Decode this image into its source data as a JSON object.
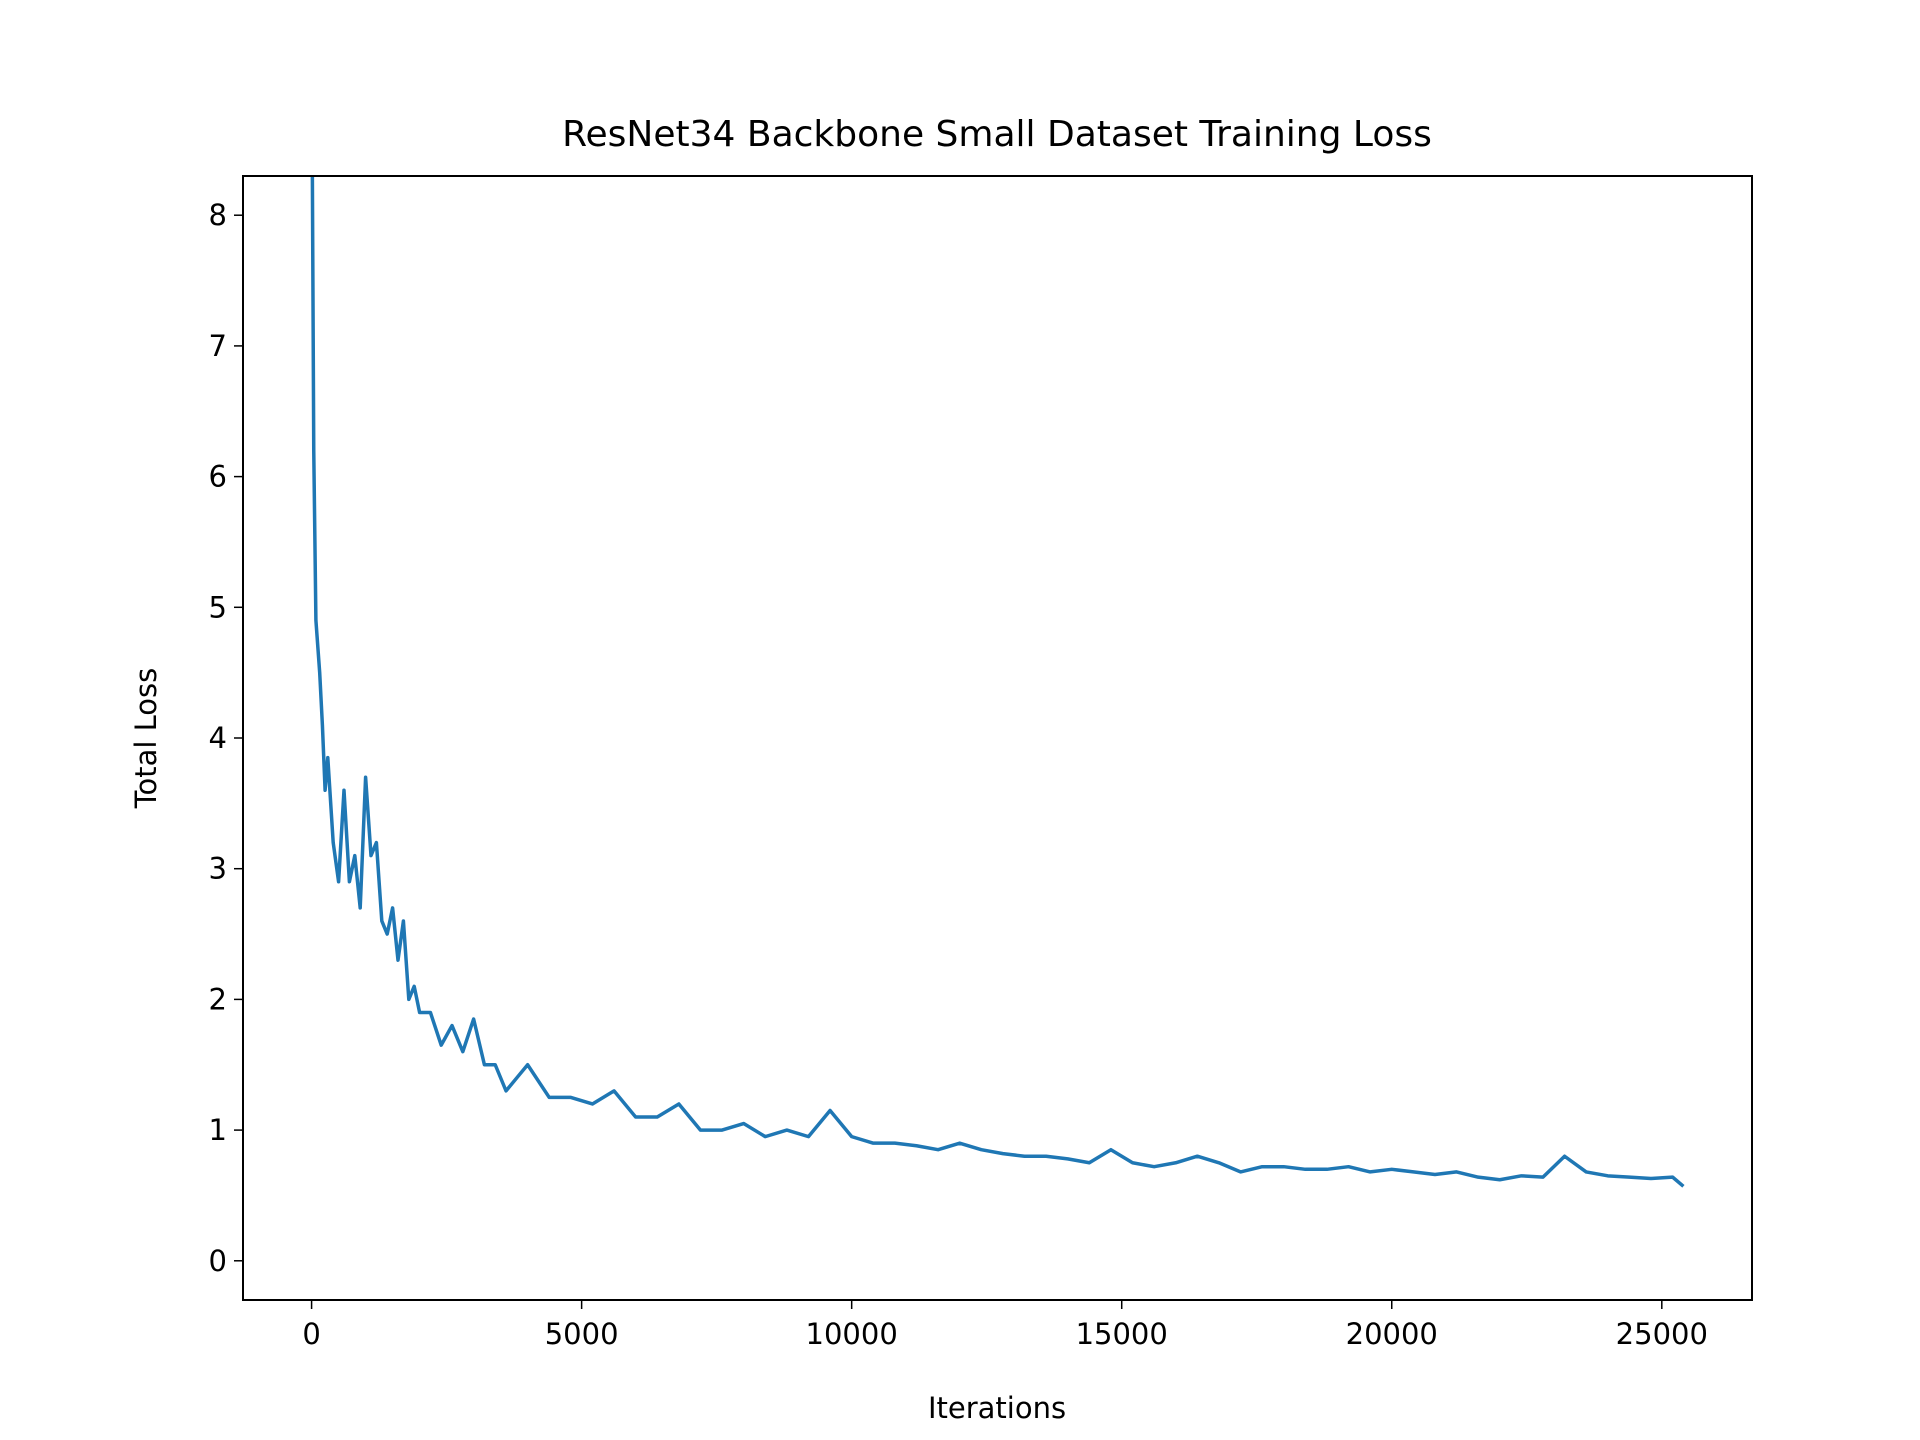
{
  "chart_data": {
    "type": "line",
    "title": "ResNet34 Backbone Small Dataset Training Loss",
    "x_label": "Iterations",
    "y_label": "Total Loss",
    "x": [
      0,
      40,
      80,
      150,
      200,
      250,
      300,
      400,
      500,
      600,
      700,
      800,
      900,
      1000,
      1100,
      1200,
      1300,
      1400,
      1500,
      1600,
      1700,
      1800,
      1900,
      2000,
      2200,
      2400,
      2600,
      2800,
      3000,
      3200,
      3400,
      3600,
      3800,
      4000,
      4400,
      4800,
      5200,
      5600,
      6000,
      6400,
      6800,
      7200,
      7600,
      8000,
      8400,
      8800,
      9200,
      9600,
      10000,
      10400,
      10800,
      11200,
      11600,
      12000,
      12400,
      12800,
      13200,
      13600,
      14000,
      14400,
      14800,
      15200,
      15600,
      16000,
      16400,
      16800,
      17200,
      17600,
      18000,
      18400,
      18800,
      19200,
      19600,
      20000,
      20400,
      20800,
      21200,
      21600,
      22000,
      22400,
      22800,
      23200,
      23600,
      24000,
      24400,
      24800,
      25200,
      25400
    ],
    "series": [
      {
        "name": "Total Loss",
        "color": "#1f77b4",
        "values": [
          9.5,
          6.2,
          4.9,
          4.5,
          4.1,
          3.6,
          3.85,
          3.2,
          2.9,
          3.6,
          2.9,
          3.1,
          2.7,
          3.7,
          3.1,
          3.2,
          2.6,
          2.5,
          2.7,
          2.3,
          2.6,
          2.0,
          2.1,
          1.9,
          1.9,
          1.65,
          1.8,
          1.6,
          1.85,
          1.5,
          1.5,
          1.3,
          1.4,
          1.5,
          1.25,
          1.25,
          1.2,
          1.3,
          1.1,
          1.1,
          1.2,
          1.0,
          1.0,
          1.05,
          0.95,
          1.0,
          0.95,
          1.15,
          0.95,
          0.9,
          0.9,
          0.88,
          0.85,
          0.9,
          0.85,
          0.82,
          0.8,
          0.8,
          0.78,
          0.75,
          0.85,
          0.75,
          0.72,
          0.75,
          0.8,
          0.75,
          0.68,
          0.72,
          0.72,
          0.7,
          0.7,
          0.72,
          0.68,
          0.7,
          0.68,
          0.66,
          0.68,
          0.64,
          0.62,
          0.65,
          0.64,
          0.8,
          0.68,
          0.65,
          0.64,
          0.63,
          0.64,
          0.57
        ]
      }
    ],
    "xlim": [
      -1270,
      26670
    ],
    "ylim": [
      -0.3,
      8.3
    ],
    "xticks": [
      0,
      5000,
      10000,
      15000,
      20000,
      25000
    ],
    "yticks": [
      0,
      1,
      2,
      3,
      4,
      5,
      6,
      7,
      8
    ]
  }
}
